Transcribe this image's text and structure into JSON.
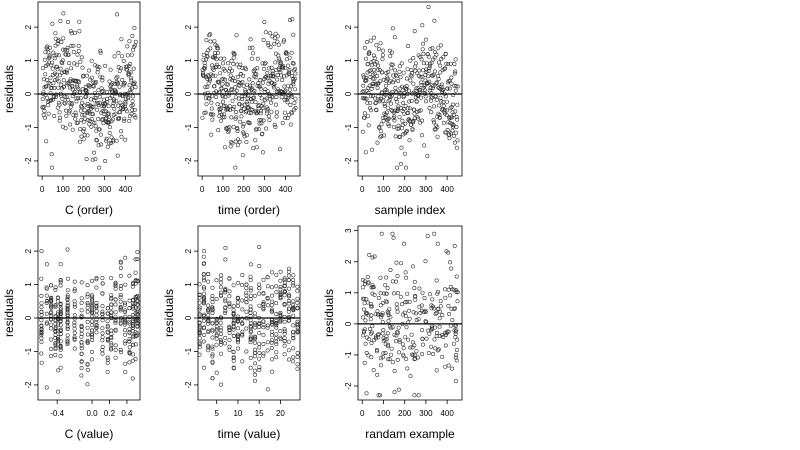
{
  "figure": {
    "background": "#ffffff",
    "point_color": "#333333",
    "zero_line_color": "#000000"
  },
  "chart_data": [
    {
      "type": "scatter",
      "title": "",
      "xlabel": "C (order)",
      "ylabel": "residuals",
      "xlim": [
        -20,
        470
      ],
      "ylim": [
        -2.45,
        2.75
      ],
      "xticks": [
        0,
        100,
        200,
        300,
        400
      ],
      "xtick_labels": [
        "0",
        "100",
        "200",
        "300",
        "400"
      ],
      "yticks": [
        -2,
        -1,
        0,
        1,
        2
      ],
      "ytick_labels": [
        "-2",
        "-1",
        "0",
        "1",
        "2"
      ],
      "hline": 0,
      "n_points": 450,
      "x_range": [
        1,
        450
      ],
      "y_range": [
        -2.2,
        2.6
      ],
      "seed": 11,
      "pattern": "c-order"
    },
    {
      "type": "scatter",
      "title": "",
      "xlabel": "time (order)",
      "ylabel": "residuals",
      "xlim": [
        -20,
        470
      ],
      "ylim": [
        -2.45,
        2.75
      ],
      "xticks": [
        0,
        100,
        200,
        300,
        400
      ],
      "xtick_labels": [
        "0",
        "100",
        "200",
        "300",
        "400"
      ],
      "yticks": [
        -2,
        -1,
        0,
        1,
        2
      ],
      "ytick_labels": [
        "-2",
        "-1",
        "0",
        "1",
        "2"
      ],
      "hline": 0,
      "n_points": 450,
      "x_range": [
        1,
        450
      ],
      "y_range": [
        -2.2,
        2.6
      ],
      "seed": 23,
      "pattern": "time-order"
    },
    {
      "type": "scatter",
      "title": "",
      "xlabel": "sample index",
      "ylabel": "residuals",
      "xlim": [
        -20,
        470
      ],
      "ylim": [
        -2.45,
        2.75
      ],
      "xticks": [
        0,
        100,
        200,
        300,
        400
      ],
      "xtick_labels": [
        "0",
        "100",
        "200",
        "300",
        "400"
      ],
      "yticks": [
        -2,
        -1,
        0,
        1,
        2
      ],
      "ytick_labels": [
        "-2",
        "-1",
        "0",
        "1",
        "2"
      ],
      "hline": 0,
      "n_points": 450,
      "x_range": [
        1,
        450
      ],
      "y_range": [
        -2.2,
        2.6
      ],
      "seed": 37,
      "pattern": "sample-index"
    },
    {
      "type": "scatter",
      "title": "",
      "xlabel": "C (value)",
      "ylabel": "residuals",
      "xlim": [
        -0.62,
        0.55
      ],
      "ylim": [
        -2.45,
        2.75
      ],
      "xticks": [
        -0.4,
        0.0,
        0.2,
        0.4
      ],
      "xtick_labels": [
        "-0.4",
        "0.0",
        "0.2",
        "0.4"
      ],
      "yticks": [
        -2,
        -1,
        0,
        1,
        2
      ],
      "ytick_labels": [
        "-2",
        "-1",
        "0",
        "1",
        "2"
      ],
      "hline": 0,
      "n_points": 450,
      "x_range": [
        -0.58,
        0.52
      ],
      "y_range": [
        -2.2,
        2.6
      ],
      "seed": 41,
      "pattern": "clustered",
      "clusters": [
        -0.58,
        -0.52,
        -0.47,
        -0.42,
        -0.39,
        -0.36,
        -0.28,
        -0.2,
        -0.12,
        -0.05,
        0.0,
        0.05,
        0.12,
        0.18,
        0.22,
        0.27,
        0.33,
        0.38,
        0.43,
        0.47,
        0.5,
        0.52
      ]
    },
    {
      "type": "scatter",
      "title": "",
      "xlabel": "time (value)",
      "ylabel": "residuals",
      "xlim": [
        0.6,
        24.6
      ],
      "ylim": [
        -2.45,
        2.75
      ],
      "xticks": [
        5,
        10,
        15,
        20
      ],
      "xtick_labels": [
        "5",
        "10",
        "15",
        "20"
      ],
      "yticks": [
        -2,
        -1,
        0,
        1,
        2
      ],
      "ytick_labels": [
        "-2",
        "-1",
        "0",
        "1",
        "2"
      ],
      "hline": 0,
      "n_points": 450,
      "x_range": [
        1,
        24
      ],
      "y_range": [
        -2.2,
        2.6
      ],
      "seed": 53,
      "pattern": "clustered",
      "clusters": [
        1,
        2,
        3,
        4,
        5,
        6,
        7,
        8,
        9,
        10,
        11,
        12,
        13,
        14,
        15,
        16,
        17,
        18,
        19,
        20,
        21,
        22,
        23,
        24
      ]
    },
    {
      "type": "scatter",
      "title": "",
      "xlabel": "randam example",
      "ylabel": "residuals",
      "xlim": [
        -20,
        470
      ],
      "ylim": [
        -2.45,
        3.15
      ],
      "xticks": [
        0,
        100,
        200,
        300,
        400
      ],
      "xtick_labels": [
        "0",
        "100",
        "200",
        "300",
        "400"
      ],
      "yticks": [
        -2,
        -1,
        0,
        1,
        2,
        3
      ],
      "ytick_labels": [
        "-2",
        "-1",
        "0",
        "1",
        "2",
        "3"
      ],
      "hline": 0,
      "n_points": 300,
      "x_range": [
        1,
        450
      ],
      "y_range": [
        -2.3,
        2.9
      ],
      "seed": 67,
      "pattern": "uniform"
    }
  ]
}
